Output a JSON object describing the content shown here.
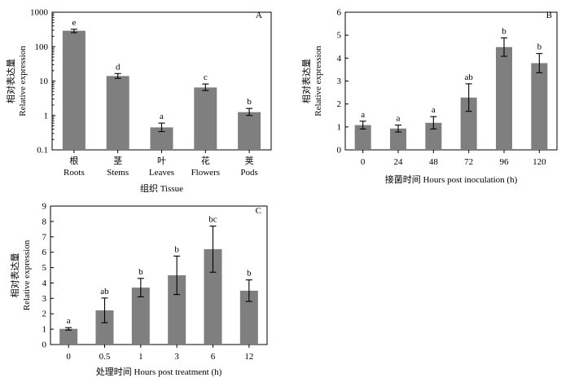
{
  "chart_data": [
    {
      "panel": "A",
      "type": "bar",
      "yscale": "log",
      "ylim": [
        0.1,
        1000
      ],
      "yticks": [
        "0.1",
        "1",
        "10",
        "100",
        "1000"
      ],
      "ylabel_cn": "相对表达量",
      "ylabel": "Relative expression",
      "xlabel": "组织 Tissue",
      "categories_cn": [
        "根",
        "茎",
        "叶",
        "花",
        "荚"
      ],
      "categories": [
        "Roots",
        "Stems",
        "Leaves",
        "Flowers",
        "Pods"
      ],
      "values": [
        290,
        14,
        0.45,
        6.5,
        1.25
      ],
      "err_low": [
        255,
        12,
        0.34,
        5.3,
        1.0
      ],
      "err_high": [
        320,
        16.5,
        0.6,
        8.2,
        1.6
      ],
      "letters": [
        "e",
        "d",
        "a",
        "c",
        "b"
      ]
    },
    {
      "panel": "B",
      "type": "bar",
      "yscale": "linear",
      "ylim": [
        0,
        6
      ],
      "yticks": [
        "0",
        "1",
        "2",
        "3",
        "4",
        "5",
        "6"
      ],
      "ylabel_cn": "相对表达量",
      "ylabel": "Relative expression",
      "xlabel": "接菌时间 Hours post inoculation (h)",
      "categories": [
        "0",
        "24",
        "48",
        "72",
        "96",
        "120"
      ],
      "values": [
        1.08,
        0.93,
        1.18,
        2.28,
        4.48,
        3.78
      ],
      "errors": [
        0.17,
        0.15,
        0.27,
        0.6,
        0.4,
        0.42
      ],
      "letters": [
        "a",
        "a",
        "a",
        "ab",
        "b",
        "b"
      ]
    },
    {
      "panel": "C",
      "type": "bar",
      "yscale": "linear",
      "ylim": [
        0,
        9
      ],
      "yticks": [
        "0",
        "1",
        "2",
        "3",
        "4",
        "5",
        "6",
        "7",
        "8",
        "9"
      ],
      "ylabel_cn": "相对表达量",
      "ylabel": "Relative expression",
      "xlabel": "处理时间 Hours post treatment (h)",
      "categories": [
        "0",
        "0.5",
        "1",
        "3",
        "6",
        "12"
      ],
      "values": [
        1.02,
        2.22,
        3.7,
        4.5,
        6.2,
        3.5
      ],
      "errors": [
        0.08,
        0.8,
        0.6,
        1.25,
        1.5,
        0.7
      ],
      "letters": [
        "a",
        "ab",
        "b",
        "b",
        "bc",
        "b"
      ]
    }
  ]
}
